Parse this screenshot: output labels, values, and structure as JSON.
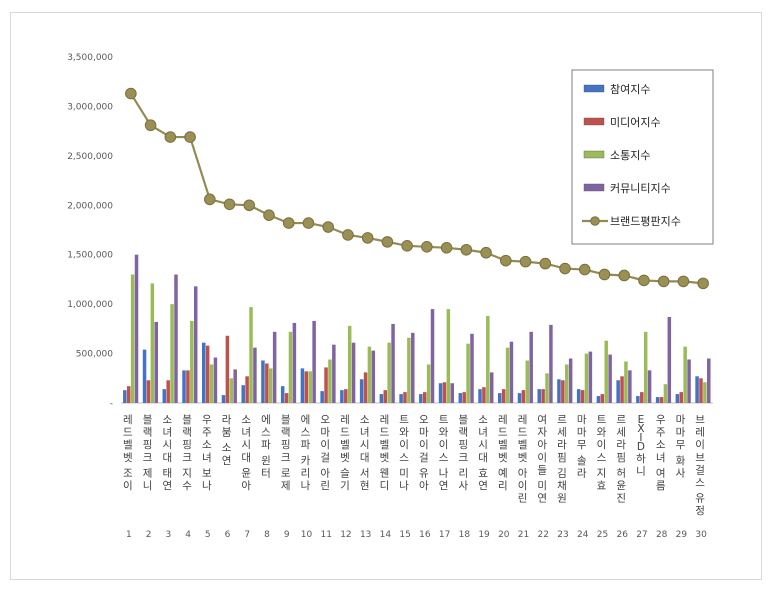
{
  "chart_data": {
    "type": "bar",
    "title": "",
    "xlabel": "",
    "ylabel": "",
    "ylim": [
      0,
      3500000
    ],
    "yticks": [
      "-",
      "500,000",
      "1,000,000",
      "1,500,000",
      "2,000,000",
      "2,500,000",
      "3,000,000",
      "3,500,000"
    ],
    "ranks": [
      "1",
      "2",
      "3",
      "4",
      "5",
      "6",
      "7",
      "8",
      "9",
      "10",
      "11",
      "12",
      "13",
      "14",
      "15",
      "16",
      "17",
      "18",
      "19",
      "20",
      "21",
      "22",
      "23",
      "24",
      "25",
      "26",
      "27",
      "28",
      "29",
      "30"
    ],
    "categories": [
      "레드벨벳 조이",
      "블랙핑크 제니",
      "소녀시대 태연",
      "블랙핑크 지수",
      "우주소녀 보나",
      "라붐 소연",
      "소녀시대 윤아",
      "에스파 윈터",
      "블랙핑크 로제",
      "에스파 카리나",
      "오마이걸 아린",
      "레드벨벳 슬기",
      "소녀시대 서현",
      "레드벨벳 웬디",
      "트와이스 미나",
      "오마이걸 유아",
      "트와이스 나연",
      "블랙핑크 리사",
      "소녀시대 효연",
      "레드벨벳 예리",
      "레드벨벳 아이린",
      "여자아이들 미연",
      "르세라핌 김채원",
      "마마무 솔라",
      "트와이스 지효",
      "르세라핌 허윤진",
      "EXID 하니",
      "우주소녀 여름",
      "마마무 화사",
      "브레이브걸스 유정"
    ],
    "legend_position": "top-right",
    "grid": false,
    "series": [
      {
        "name": "참여지수",
        "type": "bar",
        "color": "#4472c4",
        "values": [
          130000,
          540000,
          140000,
          330000,
          610000,
          80000,
          180000,
          430000,
          170000,
          350000,
          120000,
          130000,
          240000,
          90000,
          90000,
          90000,
          200000,
          100000,
          140000,
          100000,
          100000,
          140000,
          240000,
          140000,
          70000,
          230000,
          70000,
          60000,
          90000,
          270000
        ]
      },
      {
        "name": "미디어지수",
        "type": "bar",
        "color": "#c0504d",
        "values": [
          170000,
          230000,
          230000,
          330000,
          580000,
          680000,
          270000,
          400000,
          100000,
          320000,
          360000,
          140000,
          310000,
          130000,
          110000,
          110000,
          210000,
          110000,
          160000,
          140000,
          130000,
          140000,
          230000,
          130000,
          90000,
          270000,
          110000,
          60000,
          110000,
          250000
        ]
      },
      {
        "name": "소통지수",
        "type": "bar",
        "color": "#9bbb59",
        "values": [
          1300000,
          1210000,
          1000000,
          830000,
          390000,
          250000,
          970000,
          350000,
          720000,
          320000,
          440000,
          780000,
          570000,
          610000,
          660000,
          390000,
          950000,
          600000,
          880000,
          560000,
          430000,
          300000,
          390000,
          500000,
          630000,
          420000,
          720000,
          190000,
          570000,
          210000
        ]
      },
      {
        "name": "커뮤니티지수",
        "type": "bar",
        "color": "#8064a2",
        "values": [
          1500000,
          820000,
          1300000,
          1180000,
          460000,
          340000,
          560000,
          720000,
          810000,
          830000,
          590000,
          610000,
          530000,
          800000,
          710000,
          950000,
          200000,
          700000,
          310000,
          620000,
          720000,
          790000,
          450000,
          520000,
          490000,
          330000,
          330000,
          870000,
          440000,
          450000
        ]
      },
      {
        "name": "브랜드평판지수",
        "type": "line",
        "color": "#948a54",
        "values": [
          3130000,
          2810000,
          2690000,
          2690000,
          2060000,
          2010000,
          2000000,
          1900000,
          1820000,
          1820000,
          1780000,
          1700000,
          1670000,
          1630000,
          1590000,
          1580000,
          1570000,
          1550000,
          1520000,
          1440000,
          1430000,
          1410000,
          1360000,
          1350000,
          1300000,
          1290000,
          1240000,
          1230000,
          1230000,
          1210000
        ]
      }
    ]
  }
}
